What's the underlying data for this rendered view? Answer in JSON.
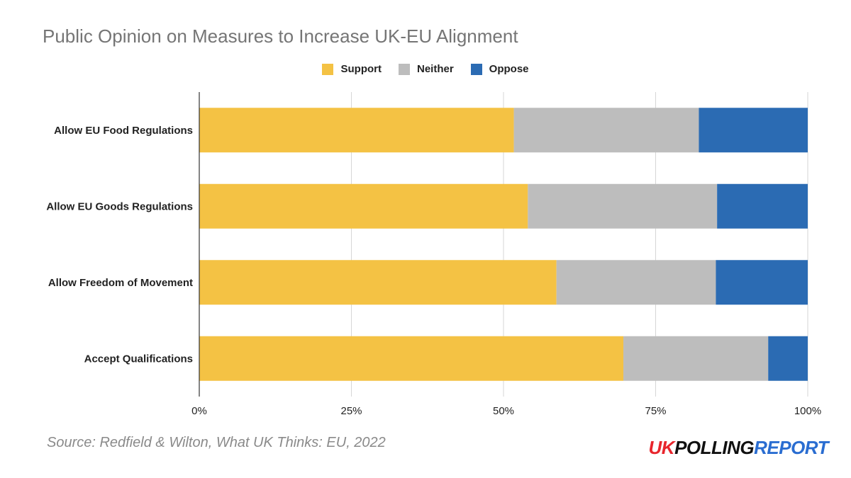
{
  "title": "Public Opinion on Measures to Increase UK-EU Alignment",
  "source": "Source: Redfield & Wilton, What UK Thinks: EU, 2022",
  "logo": {
    "part1": "UK",
    "part2": "POLLING",
    "part3": "REPORT"
  },
  "colors": {
    "support": "#F4C244",
    "neither": "#BDBDBD",
    "oppose": "#2B6BB3"
  },
  "chart_data": {
    "type": "bar",
    "orientation": "horizontal",
    "stacked": "percent",
    "categories": [
      "Allow EU Food Regulations",
      "Allow EU Goods Regulations",
      "Allow Freedom of Movement",
      "Accept Qualifications"
    ],
    "series": [
      {
        "name": "Support",
        "color": "#F4C244",
        "values": [
          51.7,
          54.0,
          58.7,
          69.7
        ]
      },
      {
        "name": "Neither",
        "color": "#BDBDBD",
        "values": [
          30.4,
          31.1,
          26.2,
          23.8
        ]
      },
      {
        "name": "Oppose",
        "color": "#2B6BB3",
        "values": [
          17.9,
          14.9,
          15.1,
          6.5
        ]
      }
    ],
    "x_ticks": [
      "0%",
      "25%",
      "50%",
      "75%",
      "100%"
    ],
    "xlim": [
      0,
      100
    ],
    "grid": true,
    "legend_position": "top-center"
  }
}
